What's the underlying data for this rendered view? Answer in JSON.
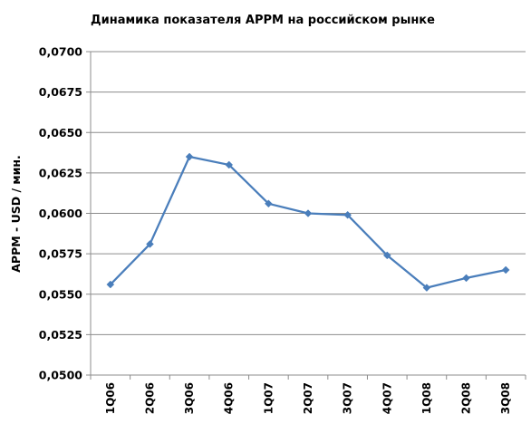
{
  "chart_data": {
    "type": "line",
    "title": "Динамика показателя APPM на российском рынке",
    "xlabel": "",
    "ylabel": "APPM - USD / мин.",
    "categories": [
      "1Q06",
      "2Q06",
      "3Q06",
      "4Q06",
      "1Q07",
      "2Q07",
      "3Q07",
      "4Q07",
      "1Q08",
      "2Q08",
      "3Q08"
    ],
    "series": [
      {
        "values": [
          0.0556,
          0.0581,
          0.0635,
          0.063,
          0.0606,
          0.06,
          0.0599,
          0.0574,
          0.0554,
          0.056,
          0.0565
        ],
        "color": "#4A7EBB"
      }
    ],
    "ylim": [
      0.05,
      0.07
    ],
    "yticks": [
      "0,0500",
      "0,0525",
      "0,0550",
      "0,0575",
      "0,0600",
      "0,0625",
      "0,0650",
      "0,0675",
      "0,0700"
    ],
    "grid": "horizontal",
    "legend": "none"
  }
}
